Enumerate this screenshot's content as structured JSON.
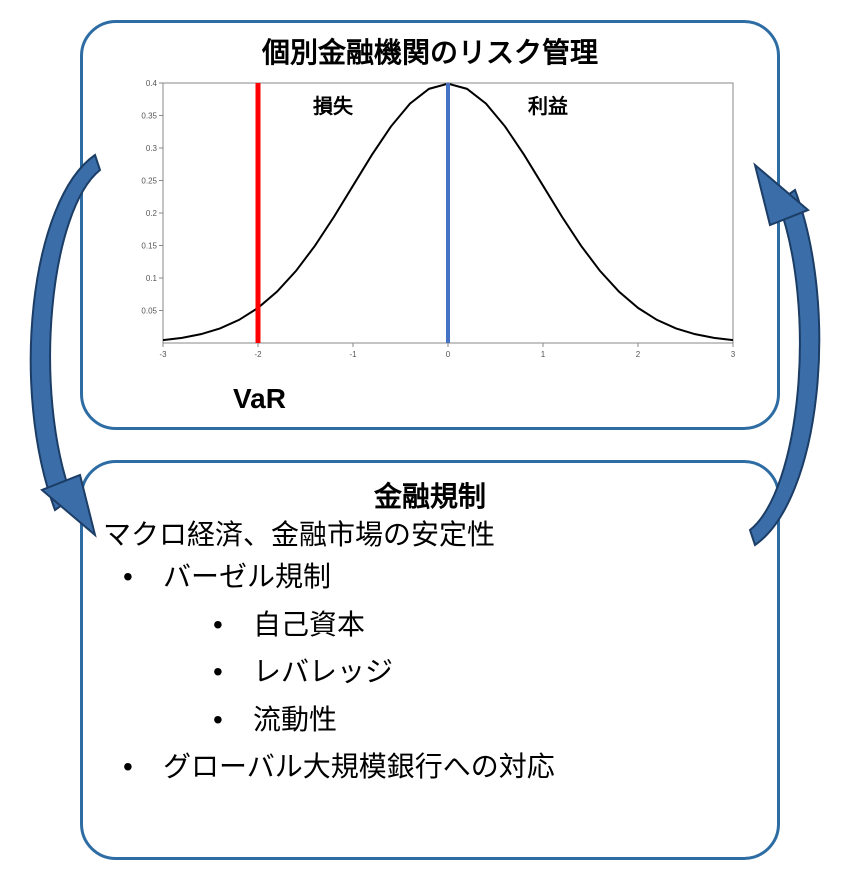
{
  "colors": {
    "panel_border": "#2e6da4",
    "arrow_fill": "#3b6ea8",
    "arrow_stroke": "#1b3d66",
    "curve": "#000000",
    "var_line": "#ff0000",
    "center_line": "#4472c4",
    "axis": "#888888",
    "tick_text": "#555555",
    "text": "#000000",
    "bg": "#ffffff"
  },
  "top_panel": {
    "title": "個別金融機関のリスク管理",
    "var_label": "VaR",
    "chart": {
      "type": "line",
      "xlim": [
        -3,
        3
      ],
      "ylim": [
        0,
        0.4
      ],
      "xticks": [
        -3,
        -2,
        -1,
        0,
        1,
        2,
        3
      ],
      "yticks": [
        0.05,
        0.1,
        0.15,
        0.2,
        0.25,
        0.3,
        0.35,
        0.4
      ],
      "center_line_x": 0,
      "var_line_x": -2,
      "loss_label": "損失",
      "gain_label": "利益",
      "label_fontsize": 20,
      "tick_fontsize": 8,
      "curve_width": 2,
      "var_line_width": 5,
      "center_line_width": 4,
      "series": [
        {
          "x": -3.0,
          "y": 0.0044
        },
        {
          "x": -2.8,
          "y": 0.0079
        },
        {
          "x": -2.6,
          "y": 0.0136
        },
        {
          "x": -2.4,
          "y": 0.0224
        },
        {
          "x": -2.2,
          "y": 0.0355
        },
        {
          "x": -2.0,
          "y": 0.054
        },
        {
          "x": -1.8,
          "y": 0.079
        },
        {
          "x": -1.6,
          "y": 0.1109
        },
        {
          "x": -1.4,
          "y": 0.1497
        },
        {
          "x": -1.2,
          "y": 0.1942
        },
        {
          "x": -1.0,
          "y": 0.242
        },
        {
          "x": -0.8,
          "y": 0.2897
        },
        {
          "x": -0.6,
          "y": 0.3332
        },
        {
          "x": -0.4,
          "y": 0.3683
        },
        {
          "x": -0.2,
          "y": 0.391
        },
        {
          "x": 0.0,
          "y": 0.3989
        },
        {
          "x": 0.2,
          "y": 0.391
        },
        {
          "x": 0.4,
          "y": 0.3683
        },
        {
          "x": 0.6,
          "y": 0.3332
        },
        {
          "x": 0.8,
          "y": 0.2897
        },
        {
          "x": 1.0,
          "y": 0.242
        },
        {
          "x": 1.2,
          "y": 0.1942
        },
        {
          "x": 1.4,
          "y": 0.1497
        },
        {
          "x": 1.6,
          "y": 0.1109
        },
        {
          "x": 1.8,
          "y": 0.079
        },
        {
          "x": 2.0,
          "y": 0.054
        },
        {
          "x": 2.2,
          "y": 0.0355
        },
        {
          "x": 2.4,
          "y": 0.0224
        },
        {
          "x": 2.6,
          "y": 0.0136
        },
        {
          "x": 2.8,
          "y": 0.0079
        },
        {
          "x": 3.0,
          "y": 0.0044
        }
      ]
    }
  },
  "bottom_panel": {
    "title": "金融規制",
    "subtitle": "マクロ経済、金融市場の安定性",
    "bullets": [
      {
        "level": 1,
        "text": "バーゼル規制"
      },
      {
        "level": 2,
        "text": "自己資本"
      },
      {
        "level": 2,
        "text": "レバレッジ"
      },
      {
        "level": 2,
        "text": "流動性"
      },
      {
        "level": 1,
        "text": "グローバル大規模銀行への対応"
      }
    ]
  }
}
